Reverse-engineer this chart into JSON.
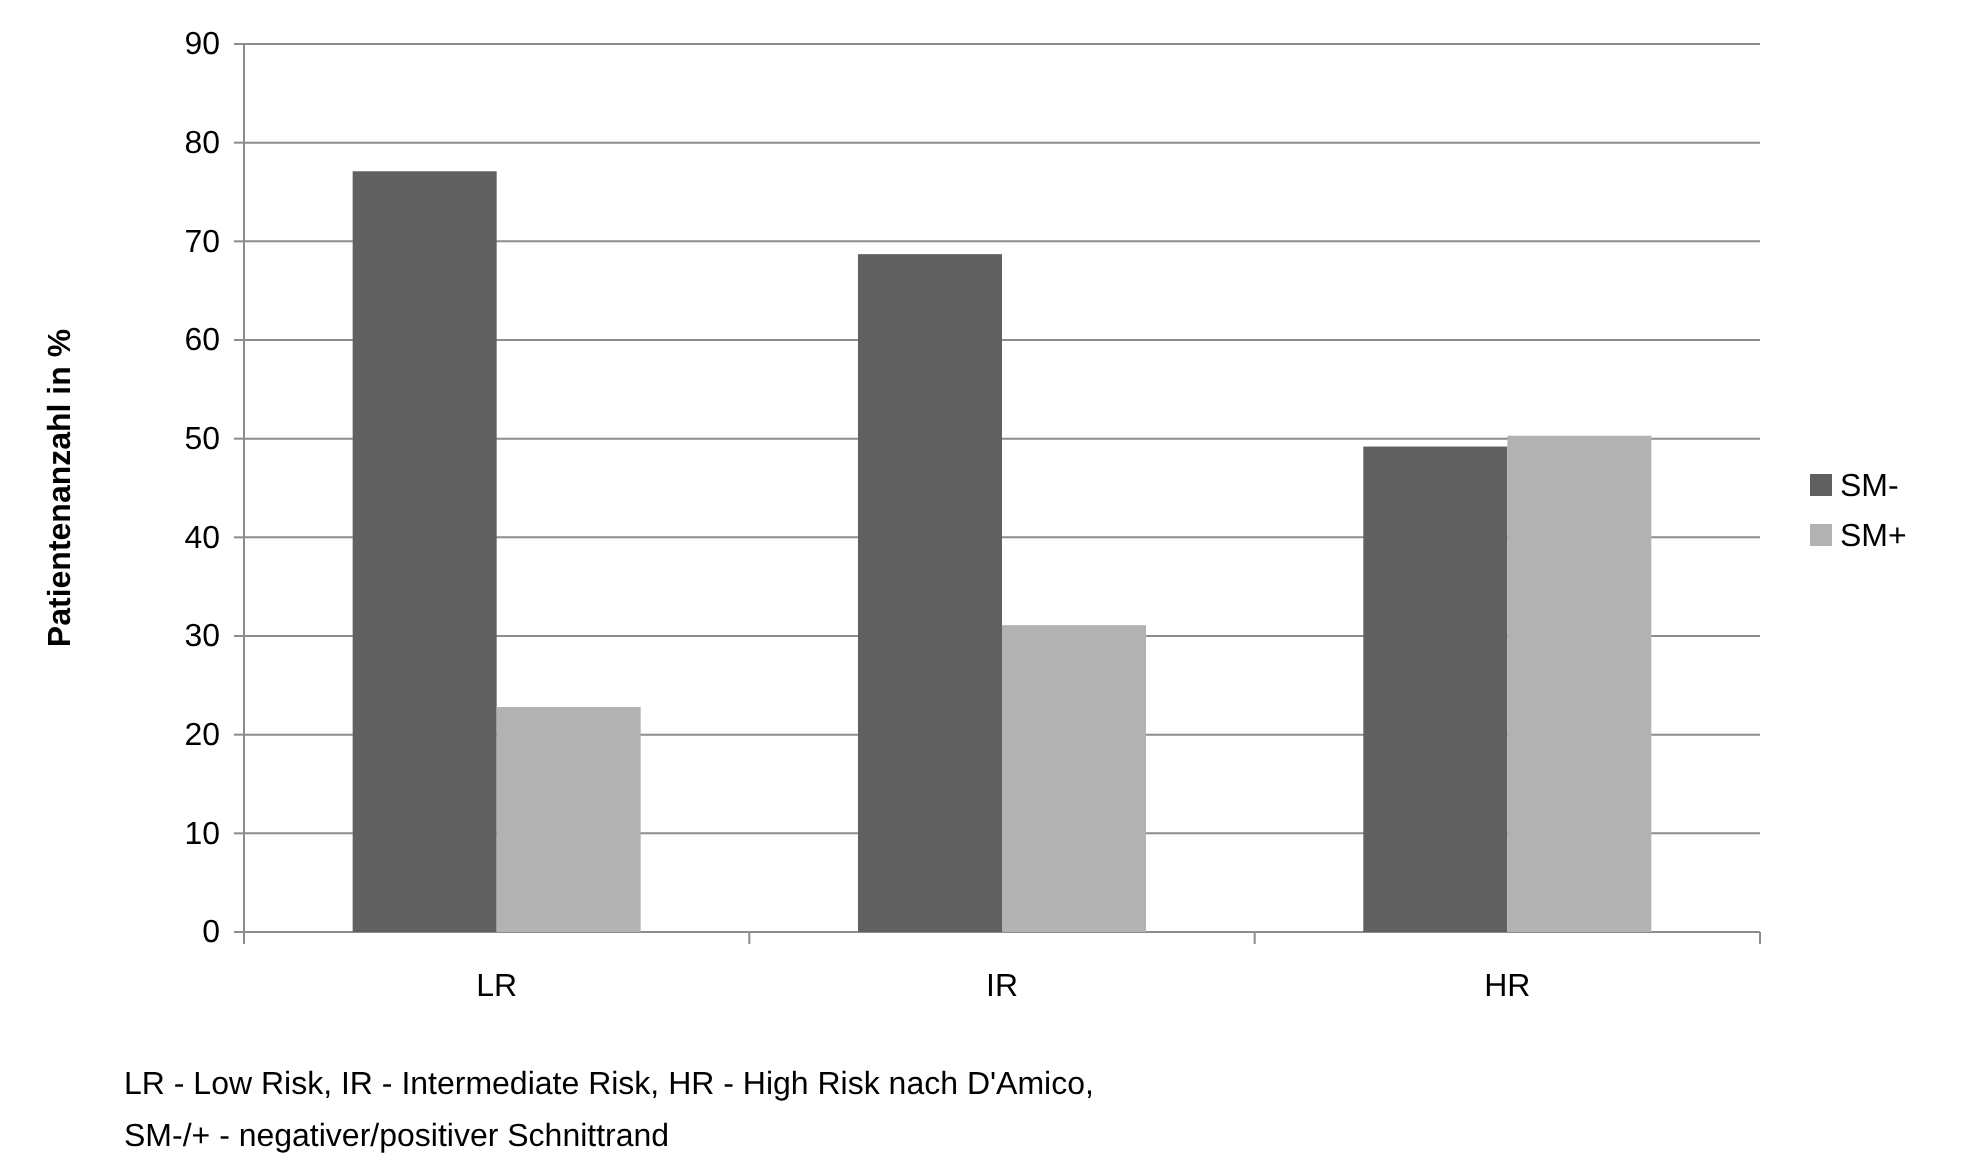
{
  "chart_data": {
    "type": "bar",
    "ylabel": "Patientenanzahl in %",
    "categories": [
      "LR",
      "IR",
      "HR"
    ],
    "series": [
      {
        "name": "SM-",
        "color": "#606060",
        "values": [
          77.1,
          68.7,
          49.2
        ]
      },
      {
        "name": "SM+",
        "color": "#b2b2b2",
        "values": [
          22.8,
          31.1,
          50.3
        ]
      }
    ],
    "ylim": [
      0,
      90
    ],
    "yticks": [
      0,
      10,
      20,
      30,
      40,
      50,
      60,
      70,
      80,
      90
    ],
    "grid": "y",
    "legend": "right",
    "annotations": [
      "LR - Low Risk, IR - Intermediate Risk, HR - High Risk nach D'Amico,",
      "SM-/+ - negativer/positiver Schnittrand"
    ]
  }
}
